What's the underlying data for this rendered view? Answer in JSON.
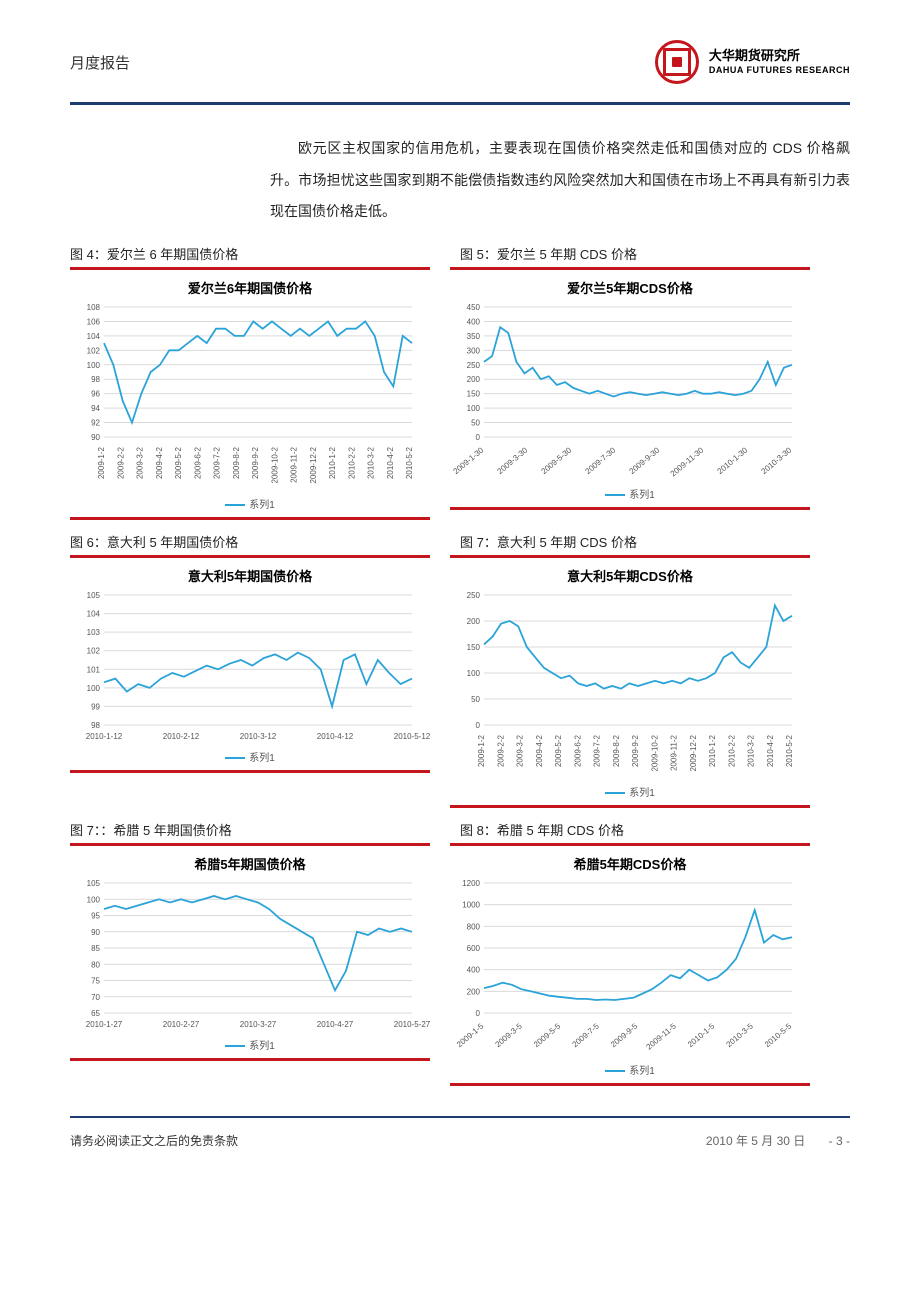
{
  "header": {
    "doc_type": "月度报告",
    "brand_cn": "大华期货研究所",
    "brand_en": "DAHUA FUTURES RESEARCH"
  },
  "colors": {
    "rule_blue": "#1f3a6e",
    "rule_red": "#c4161c",
    "series": "#2aa3d9",
    "grid": "#d9d9d9",
    "axis_text": "#555555",
    "title_text": "#000000"
  },
  "paragraph": "欧元区主权国家的信用危机，主要表现在国债价格突然走低和国债对应的 CDS 价格飙升。市场担忧这些国家到期不能偿债指数违约风险突然加大和国债在市场上不再具有新引力表现在国债价格走低。",
  "captions": {
    "c4": "图 4：爱尔兰 6 年期国债价格",
    "c5": "图 5：爱尔兰 5 年期 CDS 价格",
    "c6": "图 6：意大利 5 年期国债价格",
    "c7": "图 7：意大利 5 年期 CDS 价格",
    "c7b": "图 7：：希腊 5 年期国债价格",
    "c8": "图 8：希腊 5 年期 CDS 价格"
  },
  "legend_label": "系列1",
  "typography": {
    "chart_title_fontsize": 13,
    "axis_fontsize": 8,
    "legend_fontsize": 10
  },
  "charts": {
    "ireland_bond": {
      "type": "line",
      "title": "爱尔兰6年期国债价格",
      "ylim": [
        90,
        108
      ],
      "ytick_step": 2,
      "yticks": [
        90,
        92,
        94,
        96,
        98,
        100,
        102,
        104,
        106,
        108
      ],
      "xlabels": [
        "2009-1-2",
        "2009-2-2",
        "2009-3-2",
        "2009-4-2",
        "2009-5-2",
        "2009-6-2",
        "2009-7-2",
        "2009-8-2",
        "2009-9-2",
        "2009-10-2",
        "2009-11-2",
        "2009-12-2",
        "2010-1-2",
        "2010-2-2",
        "2010-3-2",
        "2010-4-2",
        "2010-5-2"
      ],
      "xlabel_rotation": -90,
      "values": [
        103,
        100,
        95,
        92,
        96,
        99,
        100,
        102,
        102,
        103,
        104,
        103,
        105,
        105,
        104,
        104,
        106,
        105,
        106,
        105,
        104,
        105,
        104,
        105,
        106,
        104,
        105,
        105,
        106,
        104,
        99,
        97,
        104,
        103
      ]
    },
    "ireland_cds": {
      "type": "line",
      "title": "爱尔兰5年期CDS价格",
      "ylim": [
        0,
        450
      ],
      "ytick_step": 50,
      "yticks": [
        0,
        50,
        100,
        150,
        200,
        250,
        300,
        350,
        400,
        450
      ],
      "xlabels": [
        "2009-1-30",
        "2009-3-30",
        "2009-5-30",
        "2009-7-30",
        "2009-9-30",
        "2009-11-30",
        "2010-1-30",
        "2010-3-30"
      ],
      "xlabel_rotation": -40,
      "values": [
        260,
        280,
        380,
        360,
        260,
        220,
        240,
        200,
        210,
        180,
        190,
        170,
        160,
        150,
        160,
        150,
        140,
        150,
        155,
        150,
        145,
        150,
        155,
        150,
        145,
        150,
        160,
        150,
        150,
        155,
        150,
        145,
        150,
        160,
        200,
        260,
        180,
        240,
        250
      ]
    },
    "italy_bond": {
      "type": "line",
      "title": "意大利5年期国债价格",
      "ylim": [
        98,
        105
      ],
      "ytick_step": 1,
      "yticks": [
        98,
        99,
        100,
        101,
        102,
        103,
        104,
        105
      ],
      "xlabels": [
        "2010-1-12",
        "2010-2-12",
        "2010-3-12",
        "2010-4-12",
        "2010-5-12"
      ],
      "xlabel_rotation": 0,
      "values": [
        100.3,
        100.5,
        99.8,
        100.2,
        100.0,
        100.5,
        100.8,
        100.6,
        100.9,
        101.2,
        101.0,
        101.3,
        101.5,
        101.2,
        101.6,
        101.8,
        101.5,
        101.9,
        101.6,
        101.0,
        99.0,
        101.5,
        101.8,
        100.2,
        101.5,
        100.8,
        100.2,
        100.5
      ]
    },
    "italy_cds": {
      "type": "line",
      "title": "意大利5年期CDS价格",
      "ylim": [
        0,
        250
      ],
      "ytick_step": 50,
      "yticks": [
        0,
        50,
        100,
        150,
        200,
        250
      ],
      "xlabels": [
        "2009-1-2",
        "2009-2-2",
        "2009-3-2",
        "2009-4-2",
        "2009-5-2",
        "2009-6-2",
        "2009-7-2",
        "2009-8-2",
        "2009-9-2",
        "2009-10-2",
        "2009-11-2",
        "2009-12-2",
        "2010-1-2",
        "2010-2-2",
        "2010-3-2",
        "2010-4-2",
        "2010-5-2"
      ],
      "xlabel_rotation": -90,
      "values": [
        155,
        170,
        195,
        200,
        190,
        150,
        130,
        110,
        100,
        90,
        95,
        80,
        75,
        80,
        70,
        75,
        70,
        80,
        75,
        80,
        85,
        80,
        85,
        80,
        90,
        85,
        90,
        100,
        130,
        140,
        120,
        110,
        130,
        150,
        230,
        200,
        210
      ]
    },
    "greece_bond": {
      "type": "line",
      "title": "希腊5年期国债价格",
      "ylim": [
        65,
        105
      ],
      "ytick_step": 5,
      "yticks": [
        65,
        70,
        75,
        80,
        85,
        90,
        95,
        100,
        105
      ],
      "xlabels": [
        "2010-1-27",
        "2010-2-27",
        "2010-3-27",
        "2010-4-27",
        "2010-5-27"
      ],
      "xlabel_rotation": 0,
      "values": [
        97,
        98,
        97,
        98,
        99,
        100,
        99,
        100,
        99,
        100,
        101,
        100,
        101,
        100,
        99,
        97,
        94,
        92,
        90,
        88,
        80,
        72,
        78,
        90,
        89,
        91,
        90,
        91,
        90
      ]
    },
    "greece_cds": {
      "type": "line",
      "title": "希腊5年期CDS价格",
      "ylim": [
        0,
        1200
      ],
      "ytick_step": 200,
      "yticks": [
        0,
        200,
        400,
        600,
        800,
        1000,
        1200
      ],
      "xlabels": [
        "2009-1-5",
        "2009-3-5",
        "2009-5-5",
        "2009-7-5",
        "2009-9-5",
        "2009-11-5",
        "2010-1-5",
        "2010-3-5",
        "2010-5-5"
      ],
      "xlabel_rotation": -40,
      "values": [
        230,
        250,
        280,
        260,
        220,
        200,
        180,
        160,
        150,
        140,
        130,
        130,
        120,
        125,
        120,
        130,
        140,
        180,
        220,
        280,
        350,
        320,
        400,
        350,
        300,
        330,
        400,
        500,
        700,
        950,
        650,
        720,
        680,
        700
      ]
    }
  },
  "footer": {
    "left": "请务必阅读正文之后的免责条款",
    "date": "2010 年 5 月 30 日",
    "page": "- 3 -"
  }
}
